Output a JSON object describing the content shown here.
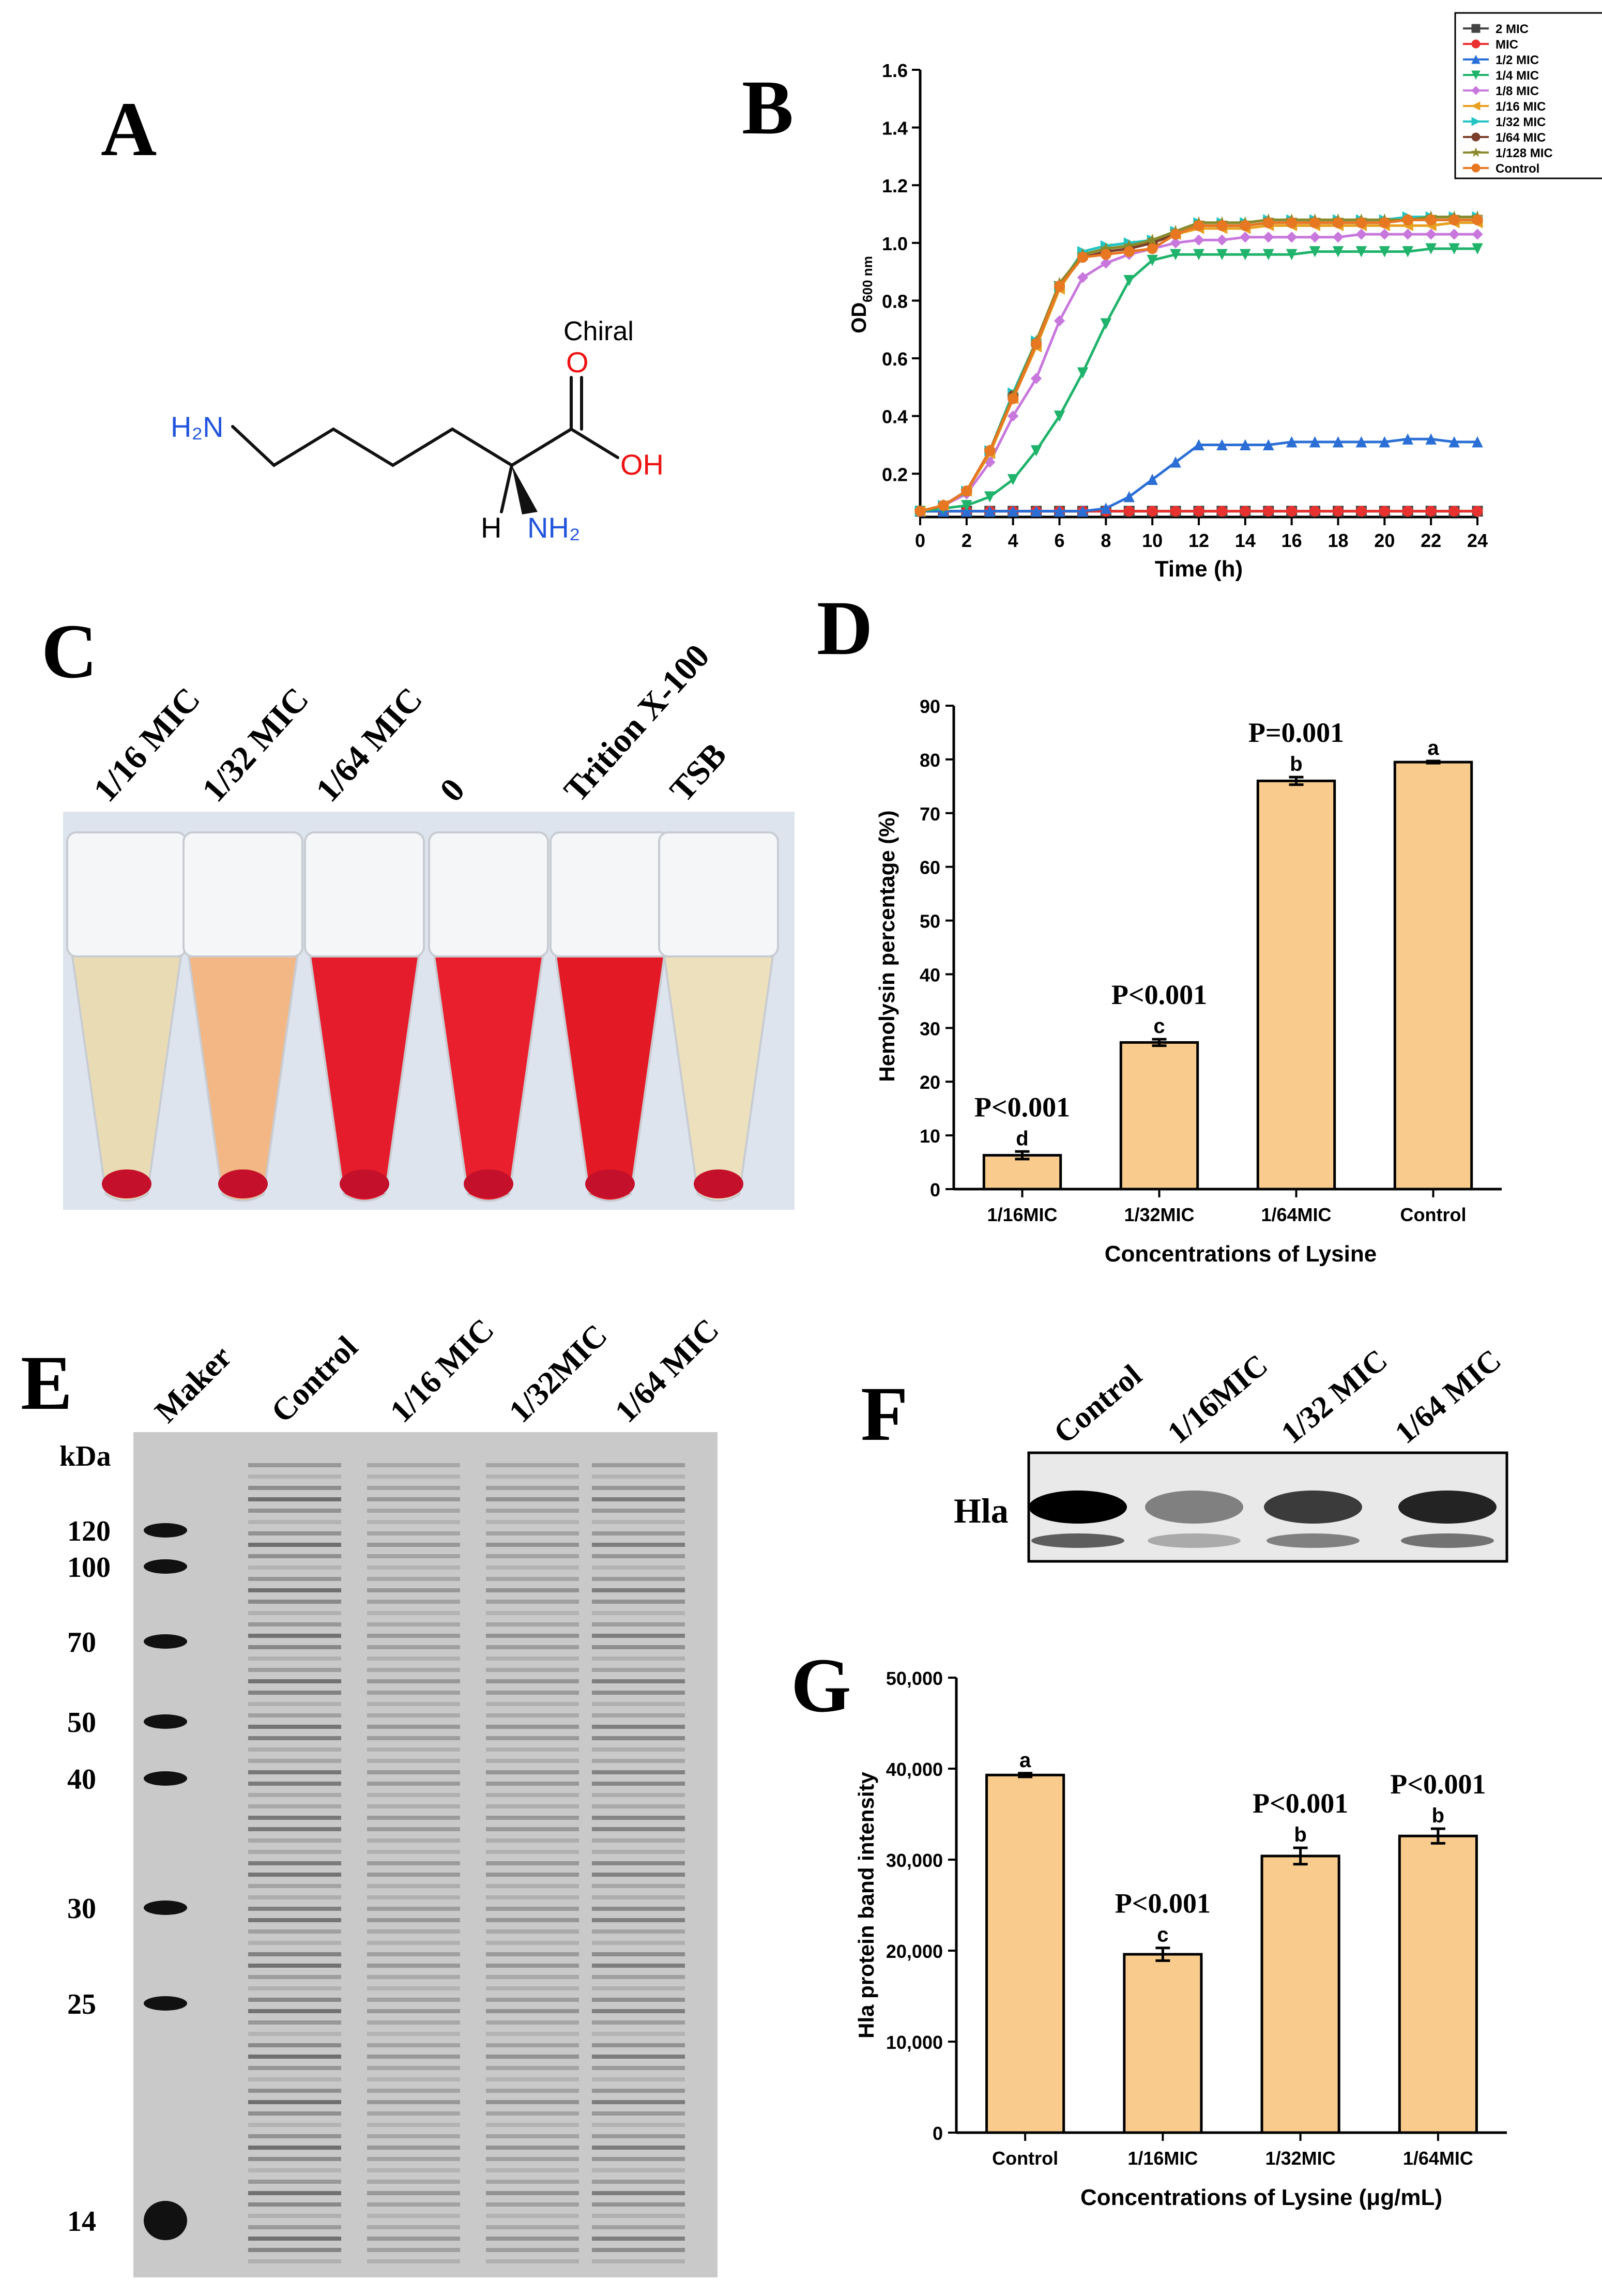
{
  "panels": {
    "A": "A",
    "B": "B",
    "C": "C",
    "D": "D",
    "E": "E",
    "F": "F",
    "G": "G"
  },
  "molecule": {
    "chiral_label": "Chiral",
    "carbonyl_O": "O",
    "hydroxyl": "OH",
    "amine_left": "H₂N",
    "amine_bottom": "NH₂",
    "hydrogen": "H"
  },
  "photo_C": {
    "tube_labels": [
      "1/16 MIC",
      "1/32 MIC",
      "1/64 MIC",
      "0",
      "Trition X-100",
      "TSB"
    ]
  },
  "gel_E": {
    "lane_labels": [
      "Maker",
      "Control",
      "1/16 MIC",
      "1/32MIC",
      "1/64 MIC"
    ],
    "unit": "kDa",
    "marker_labels": [
      "120",
      "100",
      "70",
      "50",
      "40",
      "30",
      "25",
      "14"
    ]
  },
  "blot_F": {
    "lane_labels": [
      "Control",
      "1/16MIC",
      "1/32 MIC",
      "1/64 MIC"
    ],
    "band_label": "Hla"
  },
  "chart_data": [
    {
      "panel": "B",
      "type": "line",
      "xlabel": "Time (h)",
      "ylabel_main": "OD",
      "ylabel_sub": "600 nm",
      "xlim": [
        0,
        24
      ],
      "ylim": [
        0.05,
        1.6
      ],
      "x_ticks": [
        0,
        2,
        4,
        6,
        8,
        10,
        12,
        14,
        16,
        18,
        20,
        22,
        24
      ],
      "y_ticks": [
        0.2,
        0.4,
        0.6,
        0.8,
        1.0,
        1.2,
        1.4,
        1.6
      ],
      "y_tick_labels": [
        "0.2",
        "0.4",
        "0.6",
        "0.8",
        "1.0",
        "1.2",
        "1.4",
        "1.6"
      ],
      "legend_position": "top-right",
      "x": [
        0,
        1,
        2,
        3,
        4,
        5,
        6,
        7,
        8,
        9,
        10,
        11,
        12,
        13,
        14,
        15,
        16,
        17,
        18,
        19,
        20,
        21,
        22,
        23,
        24
      ],
      "series": [
        {
          "name": "2 MIC",
          "color": "#444444",
          "marker": "square",
          "values": [
            0.07,
            0.07,
            0.07,
            0.07,
            0.07,
            0.07,
            0.07,
            0.07,
            0.07,
            0.07,
            0.07,
            0.07,
            0.07,
            0.07,
            0.07,
            0.07,
            0.07,
            0.07,
            0.07,
            0.07,
            0.07,
            0.07,
            0.07,
            0.07,
            0.07
          ]
        },
        {
          "name": "MIC",
          "color": "#e8322f",
          "marker": "circle",
          "values": [
            0.07,
            0.07,
            0.07,
            0.07,
            0.07,
            0.07,
            0.07,
            0.07,
            0.07,
            0.07,
            0.07,
            0.07,
            0.07,
            0.07,
            0.07,
            0.07,
            0.07,
            0.07,
            0.07,
            0.07,
            0.07,
            0.07,
            0.07,
            0.07,
            0.07
          ]
        },
        {
          "name": "1/2 MIC",
          "color": "#2b6fd6",
          "marker": "triangle-up",
          "values": [
            0.07,
            0.07,
            0.07,
            0.07,
            0.07,
            0.07,
            0.07,
            0.07,
            0.08,
            0.12,
            0.18,
            0.24,
            0.3,
            0.3,
            0.3,
            0.3,
            0.31,
            0.31,
            0.31,
            0.31,
            0.31,
            0.32,
            0.32,
            0.31,
            0.31
          ]
        },
        {
          "name": "1/4 MIC",
          "color": "#1fb36b",
          "marker": "triangle-down",
          "values": [
            0.07,
            0.08,
            0.09,
            0.12,
            0.18,
            0.28,
            0.4,
            0.55,
            0.72,
            0.87,
            0.94,
            0.96,
            0.96,
            0.96,
            0.96,
            0.96,
            0.96,
            0.97,
            0.97,
            0.97,
            0.97,
            0.97,
            0.98,
            0.98,
            0.98
          ]
        },
        {
          "name": "1/8 MIC",
          "color": "#c877dd",
          "marker": "diamond",
          "values": [
            0.07,
            0.09,
            0.13,
            0.24,
            0.4,
            0.53,
            0.73,
            0.88,
            0.93,
            0.96,
            0.98,
            1.0,
            1.01,
            1.01,
            1.02,
            1.02,
            1.02,
            1.02,
            1.02,
            1.03,
            1.03,
            1.03,
            1.03,
            1.03,
            1.03
          ]
        },
        {
          "name": "1/16 MIC",
          "color": "#e8a020",
          "marker": "triangle-left",
          "values": [
            0.07,
            0.09,
            0.14,
            0.27,
            0.46,
            0.64,
            0.84,
            0.96,
            0.98,
            0.99,
            1.0,
            1.03,
            1.05,
            1.05,
            1.05,
            1.06,
            1.06,
            1.06,
            1.06,
            1.06,
            1.06,
            1.06,
            1.06,
            1.07,
            1.07
          ]
        },
        {
          "name": "1/32 MIC",
          "color": "#22c4c4",
          "marker": "triangle-right",
          "values": [
            0.07,
            0.09,
            0.14,
            0.28,
            0.48,
            0.66,
            0.85,
            0.97,
            0.99,
            1.0,
            1.01,
            1.04,
            1.07,
            1.07,
            1.07,
            1.08,
            1.08,
            1.08,
            1.08,
            1.08,
            1.08,
            1.09,
            1.09,
            1.09,
            1.09
          ]
        },
        {
          "name": "1/64 MIC",
          "color": "#7a3e2a",
          "marker": "hexagon",
          "values": [
            0.07,
            0.09,
            0.14,
            0.28,
            0.47,
            0.65,
            0.85,
            0.95,
            0.97,
            0.98,
            1.0,
            1.03,
            1.06,
            1.06,
            1.06,
            1.07,
            1.07,
            1.07,
            1.07,
            1.07,
            1.07,
            1.08,
            1.08,
            1.08,
            1.08
          ]
        },
        {
          "name": "1/128 MIC",
          "color": "#8a8a2a",
          "marker": "star",
          "values": [
            0.07,
            0.09,
            0.14,
            0.28,
            0.47,
            0.66,
            0.86,
            0.96,
            0.98,
            0.99,
            1.01,
            1.04,
            1.07,
            1.07,
            1.07,
            1.08,
            1.08,
            1.08,
            1.08,
            1.08,
            1.08,
            1.08,
            1.09,
            1.09,
            1.09
          ]
        },
        {
          "name": "Control",
          "color": "#e87722",
          "marker": "pentagon",
          "values": [
            0.07,
            0.09,
            0.14,
            0.28,
            0.46,
            0.65,
            0.85,
            0.95,
            0.96,
            0.97,
            0.98,
            1.03,
            1.06,
            1.06,
            1.06,
            1.07,
            1.07,
            1.07,
            1.07,
            1.07,
            1.07,
            1.08,
            1.08,
            1.08,
            1.08
          ]
        }
      ]
    },
    {
      "panel": "D",
      "type": "bar",
      "xlabel": "Concentrations of Lysine",
      "ylabel": "Hemolysin percentage (%)",
      "ylim": [
        0,
        90
      ],
      "y_ticks": [
        0,
        10,
        20,
        30,
        40,
        50,
        60,
        70,
        80,
        90
      ],
      "y_tick_labels": [
        "0",
        "10",
        "20",
        "30",
        "40",
        "50",
        "60",
        "70",
        "80",
        "90"
      ],
      "categories": [
        "1/16MIC",
        "1/32MIC",
        "1/64MIC",
        "Control"
      ],
      "values": [
        6.3,
        27.3,
        76.0,
        79.5
      ],
      "errors": [
        0.7,
        0.6,
        0.7,
        0.2
      ],
      "letters": [
        "d",
        "c",
        "b",
        "a"
      ],
      "p_values": [
        "P<0.001",
        "P<0.001",
        "P=0.001",
        ""
      ],
      "bar_color": "#f9cc8e"
    },
    {
      "panel": "G",
      "type": "bar",
      "xlabel": "Concentrations of Lysine (μg/mL)",
      "ylabel": "Hla protein band intensity",
      "ylim": [
        0,
        50000
      ],
      "y_ticks": [
        0,
        10000,
        20000,
        30000,
        40000,
        50000
      ],
      "y_tick_labels": [
        "0",
        "10,000",
        "20,000",
        "30,000",
        "40,000",
        "50,000"
      ],
      "categories": [
        "Control",
        "1/16MIC",
        "1/32MIC",
        "1/64MIC"
      ],
      "values": [
        39300,
        19600,
        30400,
        32600
      ],
      "errors": [
        200,
        700,
        900,
        800
      ],
      "letters": [
        "a",
        "c",
        "b",
        "b"
      ],
      "p_values": [
        "",
        "P<0.001",
        "P<0.001",
        "P<0.001"
      ],
      "bar_color": "#f9cc8e"
    }
  ]
}
